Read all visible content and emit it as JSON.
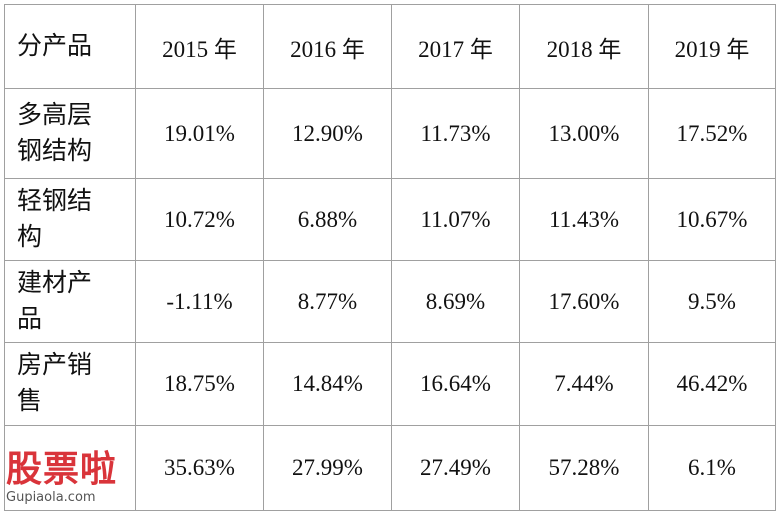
{
  "table": {
    "header": [
      "分产品",
      "2015 年",
      "2016 年",
      "2017 年",
      "2018 年",
      "2019 年"
    ],
    "rows": [
      [
        "多高层钢结构",
        "19.01%",
        "12.90%",
        "11.73%",
        "13.00%",
        "17.52%"
      ],
      [
        "轻钢结构",
        "10.72%",
        "6.88%",
        "11.07%",
        "11.43%",
        "10.67%"
      ],
      [
        "建材产品",
        "-1.11%",
        "8.77%",
        "8.69%",
        "17.60%",
        "9.5%"
      ],
      [
        "房产销售",
        "18.75%",
        "14.84%",
        "16.64%",
        "7.44%",
        "46.42%"
      ],
      [
        null,
        "35.63%",
        "27.99%",
        "27.49%",
        "57.28%",
        "6.1%"
      ]
    ]
  },
  "watermark": {
    "logo": "股票啦",
    "url": "Gupiaola.com"
  }
}
